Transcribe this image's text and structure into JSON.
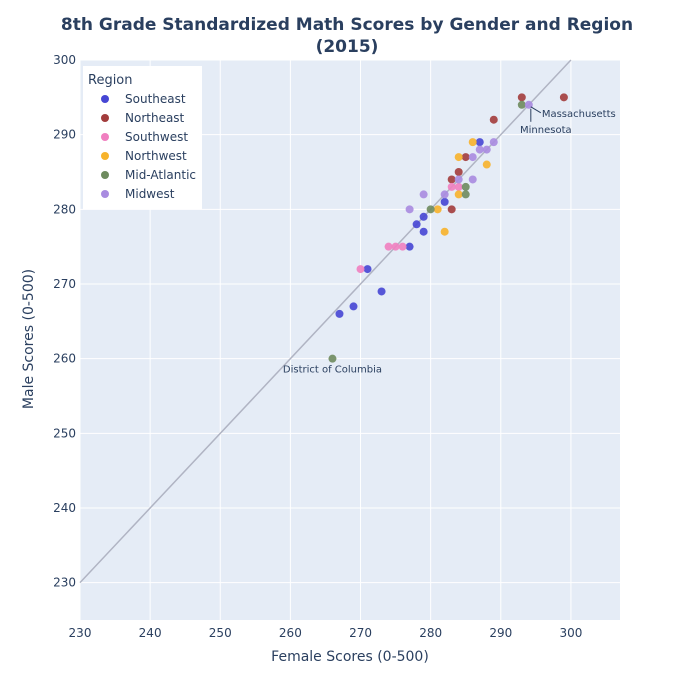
{
  "chart_data": {
    "type": "scatter",
    "title_line1": "8th Grade Standardized Math Scores by Gender and Region",
    "title_line2": "(2015)",
    "xlabel": "Female Scores (0-500)",
    "ylabel": "Male Scores (0-500)",
    "xlim": [
      230,
      307
    ],
    "ylim": [
      225,
      300
    ],
    "x_ticks": [
      230,
      240,
      250,
      260,
      270,
      280,
      290,
      300
    ],
    "y_ticks": [
      230,
      240,
      250,
      260,
      270,
      280,
      290,
      300
    ],
    "grid": true,
    "legend_title": "Region",
    "legend_position": "top-left",
    "reference_line": {
      "x": [
        230,
        300
      ],
      "y": [
        230,
        300
      ],
      "color": "#b0b4c3"
    },
    "series": [
      {
        "name": "Southeast",
        "color": "#4646d4",
        "points": [
          [
            267,
            266
          ],
          [
            269,
            267
          ],
          [
            271,
            272
          ],
          [
            273,
            269
          ],
          [
            277,
            275
          ],
          [
            278,
            278
          ],
          [
            279,
            277
          ],
          [
            279,
            279
          ],
          [
            282,
            281
          ],
          [
            287,
            289
          ]
        ]
      },
      {
        "name": "Northeast",
        "color": "#a23c3c",
        "points": [
          [
            283,
            284
          ],
          [
            283,
            280
          ],
          [
            284,
            285
          ],
          [
            285,
            287
          ],
          [
            289,
            292
          ],
          [
            293,
            295
          ],
          [
            299,
            295
          ]
        ]
      },
      {
        "name": "Southwest",
        "color": "#f07fc0",
        "points": [
          [
            270,
            272
          ],
          [
            274,
            275
          ],
          [
            275,
            275
          ],
          [
            276,
            275
          ],
          [
            283,
            283
          ],
          [
            284,
            283
          ]
        ]
      },
      {
        "name": "Northwest",
        "color": "#f7b32b",
        "points": [
          [
            281,
            280
          ],
          [
            282,
            277
          ],
          [
            284,
            282
          ],
          [
            284,
            287
          ],
          [
            286,
            289
          ],
          [
            288,
            286
          ]
        ]
      },
      {
        "name": "Mid-Atlantic",
        "color": "#6e8b5e",
        "points": [
          [
            266,
            260
          ],
          [
            280,
            280
          ],
          [
            285,
            283
          ],
          [
            285,
            282
          ],
          [
            293,
            294
          ]
        ]
      },
      {
        "name": "Midwest",
        "color": "#a98be0",
        "points": [
          [
            277,
            280
          ],
          [
            279,
            282
          ],
          [
            282,
            282
          ],
          [
            284,
            284
          ],
          [
            286,
            284
          ],
          [
            286,
            287
          ],
          [
            287,
            288
          ],
          [
            288,
            288
          ],
          [
            289,
            289
          ],
          [
            294,
            294
          ]
        ]
      }
    ],
    "annotations": [
      {
        "text": "District of Columbia",
        "x": 266,
        "y": 260
      },
      {
        "text": "Massachusetts",
        "x": 294,
        "y": 294
      },
      {
        "text": "Minnesota",
        "x": 293,
        "y": 294
      }
    ]
  }
}
